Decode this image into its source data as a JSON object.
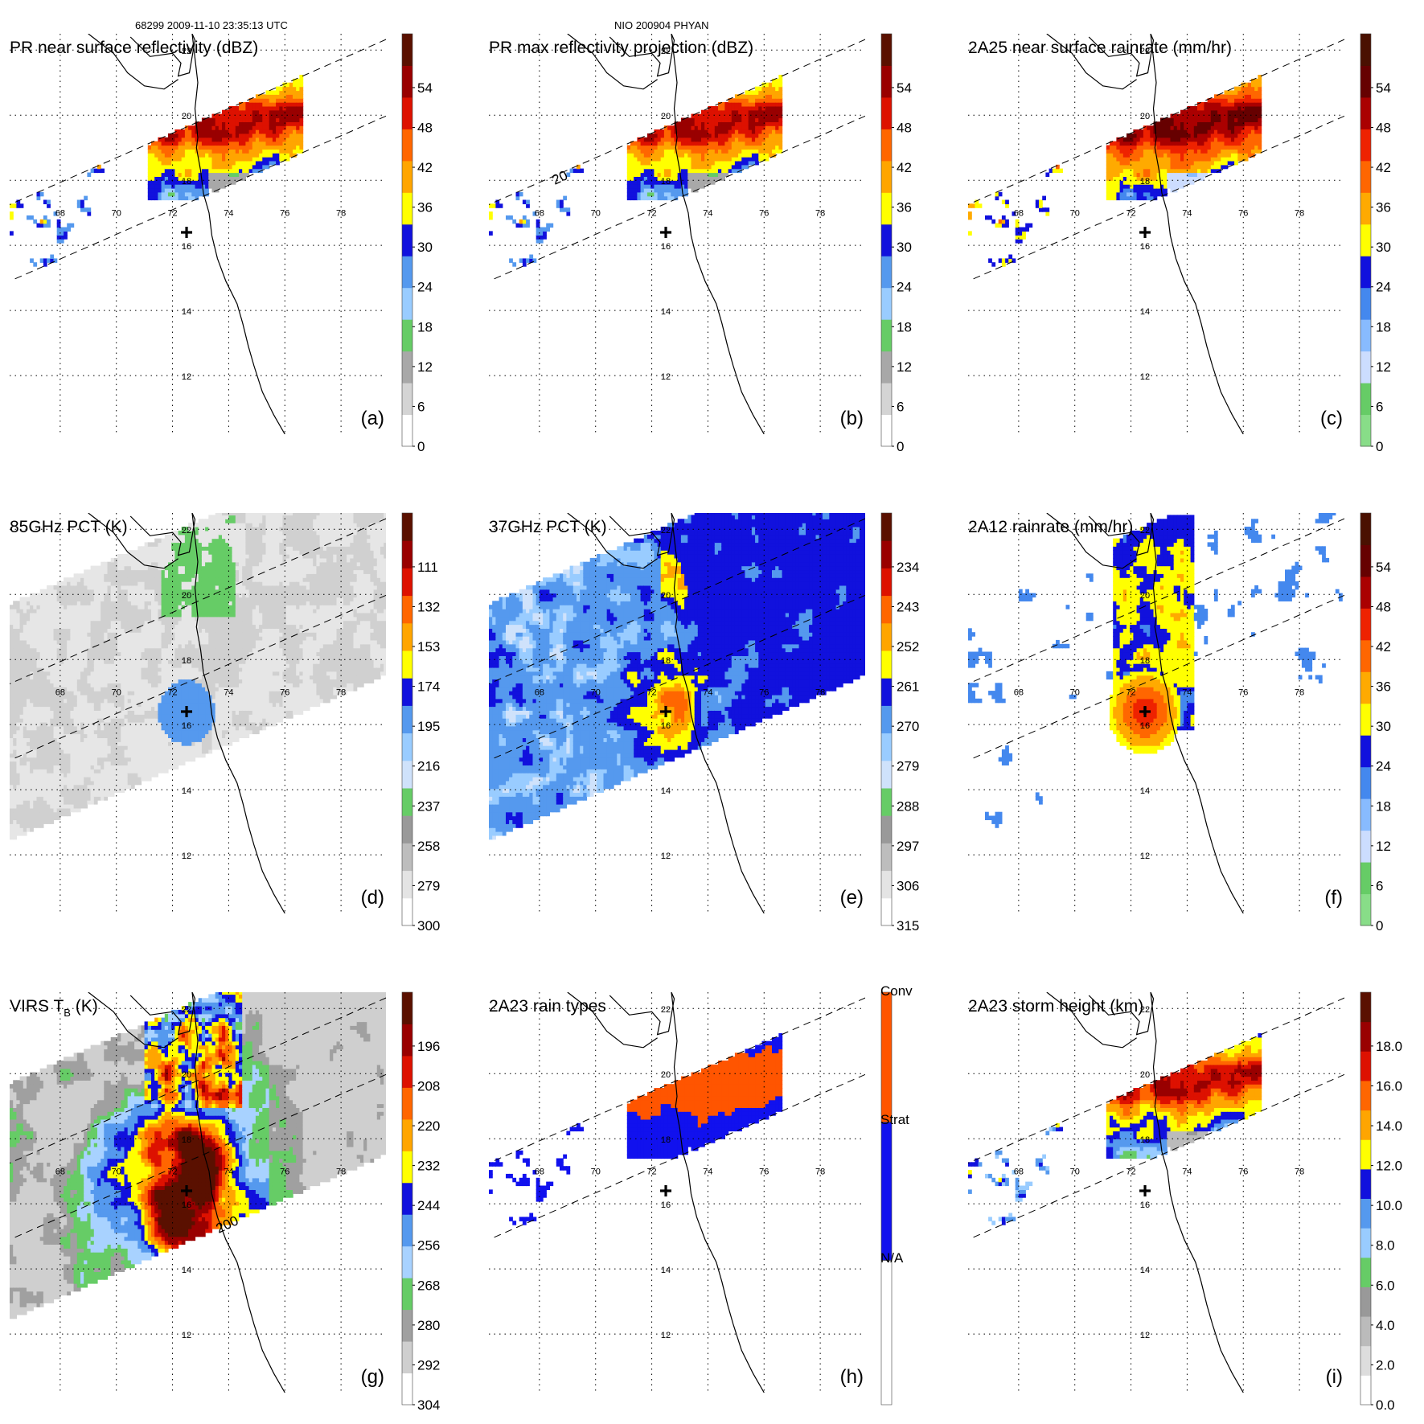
{
  "header": {
    "left": "68299 2009-11-10 23:35:13 UTC",
    "center": "NIO 200904 PHYAN"
  },
  "map": {
    "lon_ticks": [
      "68",
      "70",
      "72",
      "74",
      "76",
      "78"
    ],
    "lat_ticks": [
      "12",
      "14",
      "16",
      "18",
      "20",
      "22"
    ],
    "storm_center": {
      "lon": 72.5,
      "lat": 16.4
    }
  },
  "chart_data": [
    {
      "type": "heatmap",
      "id": "a",
      "title": "PR near surface reflectivity (dBZ)",
      "label": "(a)",
      "colorbar": {
        "ticks": [
          "0",
          "6",
          "12",
          "18",
          "24",
          "30",
          "36",
          "42",
          "48",
          "54"
        ]
      },
      "swath": "PR",
      "pattern": "pr_refl",
      "contour_labels": []
    },
    {
      "type": "heatmap",
      "id": "b",
      "title": "PR max reflectivity projection (dBZ)",
      "label": "(b)",
      "colorbar": {
        "ticks": [
          "0",
          "6",
          "12",
          "18",
          "24",
          "30",
          "36",
          "42",
          "48",
          "54"
        ]
      },
      "swath": "PR",
      "pattern": "pr_max",
      "contour_labels": [
        "20"
      ]
    },
    {
      "type": "heatmap",
      "id": "c",
      "title": "2A25 near surface rainrate (mm/hr)",
      "label": "(c)",
      "colorbar": {
        "ticks": [
          "0",
          "6",
          "12",
          "18",
          "24",
          "30",
          "36",
          "42",
          "48",
          "54"
        ]
      },
      "swath": "PR",
      "pattern": "pr_rain",
      "contour_labels": []
    },
    {
      "type": "heatmap",
      "id": "d",
      "title": "85GHz PCT (K)",
      "label": "(d)",
      "colorbar": {
        "ticks": [
          "300",
          "279",
          "258",
          "237",
          "216",
          "195",
          "174",
          "153",
          "132",
          "111"
        ]
      },
      "swath": "TMI",
      "pattern": "pct85",
      "contour_labels": []
    },
    {
      "type": "heatmap",
      "id": "e",
      "title": "37GHz PCT (K)",
      "label": "(e)",
      "colorbar": {
        "ticks": [
          "315",
          "306",
          "297",
          "288",
          "279",
          "270",
          "261",
          "252",
          "243",
          "234"
        ]
      },
      "swath": "TMI",
      "pattern": "pct37",
      "contour_labels": []
    },
    {
      "type": "heatmap",
      "id": "f",
      "title": "2A12 rainrate (mm/hr)",
      "label": "(f)",
      "colorbar": {
        "ticks": [
          "0",
          "6",
          "12",
          "18",
          "24",
          "30",
          "36",
          "42",
          "48",
          "54"
        ]
      },
      "swath": "TMI",
      "pattern": "tmi_rain",
      "contour_labels": []
    },
    {
      "type": "heatmap",
      "id": "g",
      "title": "VIRS T",
      "title_sub": "B",
      "title_after": " (K)",
      "label": "(g)",
      "colorbar": {
        "ticks": [
          "304",
          "292",
          "280",
          "268",
          "256",
          "244",
          "232",
          "220",
          "208",
          "196"
        ]
      },
      "swath": "TMI",
      "pattern": "virs",
      "contour_labels": [
        "200"
      ]
    },
    {
      "type": "heatmap",
      "id": "h",
      "title": "2A23 rain types",
      "label": "(h)",
      "colorbar": {
        "categorical": true,
        "ticks": [
          "N/A",
          "Strat",
          "Conv"
        ]
      },
      "swath": "PR",
      "pattern": "raintype",
      "contour_labels": []
    },
    {
      "type": "heatmap",
      "id": "i",
      "title": "2A23 storm height (km)",
      "label": "(i)",
      "colorbar": {
        "ticks": [
          "0.0",
          "2.0",
          "4.0",
          "6.0",
          "8.0",
          "10.0",
          "12.0",
          "14.0",
          "16.0",
          "18.0"
        ]
      },
      "swath": "PR",
      "pattern": "height",
      "contour_labels": []
    }
  ],
  "colors": {
    "refl": [
      "#ffffff",
      "#d4d4d4",
      "#a8a8a8",
      "#66cc66",
      "#99ccff",
      "#5599ee",
      "#1111dd",
      "#ffff00",
      "#ffa500",
      "#ff6600",
      "#dd1100",
      "#990000",
      "#5a1000"
    ],
    "rain": [
      "#88dd88",
      "#66cc66",
      "#ccddff",
      "#88bbff",
      "#4488ee",
      "#1111dd",
      "#ffff00",
      "#ffaa00",
      "#ff6600",
      "#ee2200",
      "#aa0000",
      "#660000",
      "#4a1000"
    ],
    "pct": [
      "#ffffff",
      "#e4e4e4",
      "#bdbdbd",
      "#999999",
      "#66cc66",
      "#cfe2fb",
      "#99ccff",
      "#5599ee",
      "#1111dd",
      "#ffff00",
      "#ffa500",
      "#ff6600",
      "#dd1100",
      "#990000",
      "#5a1000"
    ],
    "virs": [
      "#ffffff",
      "#cfcfcf",
      "#a0a0a0",
      "#66cc66",
      "#a8d2ff",
      "#5599ee",
      "#1111dd",
      "#ffff00",
      "#ffa500",
      "#ff6600",
      "#dd1100",
      "#990000",
      "#5a1000"
    ],
    "raintype": [
      "#ffffff",
      "#1111ee",
      "#ff5500"
    ],
    "height": [
      "#ffffff",
      "#dddddd",
      "#bbbbbb",
      "#999999",
      "#66cc66",
      "#99ccff",
      "#5599ee",
      "#1111dd",
      "#ffff00",
      "#ffa500",
      "#ff6600",
      "#dd1100",
      "#990000",
      "#5a1000"
    ]
  }
}
